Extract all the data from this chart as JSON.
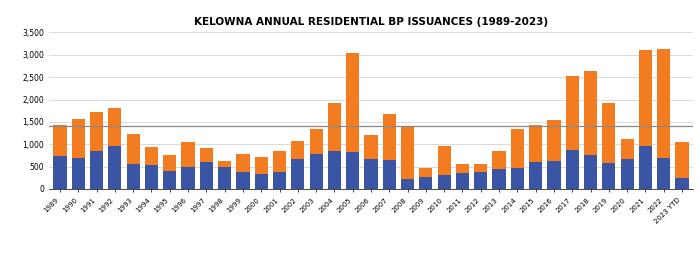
{
  "title": "KELOWNA ANNUAL RESIDENTIAL BP ISSUANCES (1989-2023)",
  "years": [
    "1989",
    "1990",
    "1991",
    "1992",
    "1993",
    "1994",
    "1995",
    "1996",
    "1997",
    "1998",
    "1999",
    "2000",
    "2001",
    "2002",
    "2003",
    "2004",
    "2005",
    "2006",
    "2007",
    "2008",
    "2009",
    "2010",
    "2011",
    "2012",
    "2013",
    "2014",
    "2015",
    "2016",
    "2017",
    "2018",
    "2019",
    "2020",
    "2021",
    "2022",
    "2023 YTD"
  ],
  "single_family": [
    730,
    690,
    860,
    950,
    550,
    530,
    400,
    490,
    600,
    490,
    380,
    340,
    390,
    680,
    780,
    860,
    830,
    680,
    640,
    220,
    270,
    310,
    350,
    390,
    440,
    480,
    600,
    620,
    870,
    760,
    580,
    670,
    960,
    690,
    250
  ],
  "multi_family": [
    710,
    870,
    850,
    870,
    680,
    410,
    370,
    560,
    320,
    130,
    400,
    380,
    460,
    390,
    560,
    1060,
    2210,
    520,
    1040,
    1190,
    200,
    650,
    210,
    170,
    400,
    860,
    840,
    930,
    1650,
    1870,
    1350,
    440,
    2140,
    2430,
    810
  ],
  "average_units": 1410,
  "single_family_color": "#3955a3",
  "multi_family_color": "#f47c20",
  "average_line_color": "#888888",
  "ylim": [
    0,
    3500
  ],
  "yticks": [
    0,
    500,
    1000,
    1500,
    2000,
    2500,
    3000,
    3500
  ],
  "background_color": "#ffffff",
  "title_fontsize": 7.5
}
